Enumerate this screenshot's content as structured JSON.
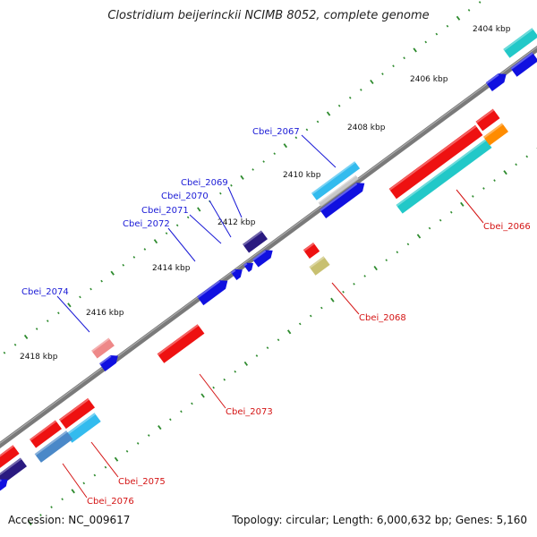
{
  "title": "Clostridium beijerinckii NCIMB 8052, complete genome",
  "footer": {
    "accession": "Accession: NC_009617",
    "summary": "Topology: circular; Length: 6,000,632 bp; Genes: 5,160"
  },
  "ticks": [
    {
      "label": "2404 kbp"
    },
    {
      "label": "2406 kbp"
    },
    {
      "label": "2408 kbp"
    },
    {
      "label": "2410 kbp"
    },
    {
      "label": "2412 kbp"
    },
    {
      "label": "2414 kbp"
    },
    {
      "label": "2416 kbp"
    },
    {
      "label": "2418 kbp"
    }
  ],
  "gene_labels": [
    {
      "name": "Cbei_2067",
      "strand": "forward"
    },
    {
      "name": "Cbei_2069",
      "strand": "forward"
    },
    {
      "name": "Cbei_2070",
      "strand": "forward"
    },
    {
      "name": "Cbei_2071",
      "strand": "forward"
    },
    {
      "name": "Cbei_2072",
      "strand": "forward"
    },
    {
      "name": "Cbei_2074",
      "strand": "forward"
    },
    {
      "name": "Cbei_2066",
      "strand": "reverse"
    },
    {
      "name": "Cbei_2068",
      "strand": "reverse"
    },
    {
      "name": "Cbei_2073",
      "strand": "reverse"
    },
    {
      "name": "Cbei_2075",
      "strand": "reverse"
    },
    {
      "name": "Cbei_2076",
      "strand": "reverse"
    }
  ],
  "colors": {
    "forward_label": "#1a1ad6",
    "reverse_label": "#d41414",
    "forward_cds": "#1010e0",
    "reverse_cds": "#ee1111",
    "cyan": "#22c8c8",
    "light_blue": "#33bbee",
    "navy": "#2a1a80",
    "orange": "#ff8c00",
    "pink": "#ee8888",
    "khaki": "#c8c070",
    "backbone": "#7a7a7a",
    "tick": "#2e8b2e"
  }
}
